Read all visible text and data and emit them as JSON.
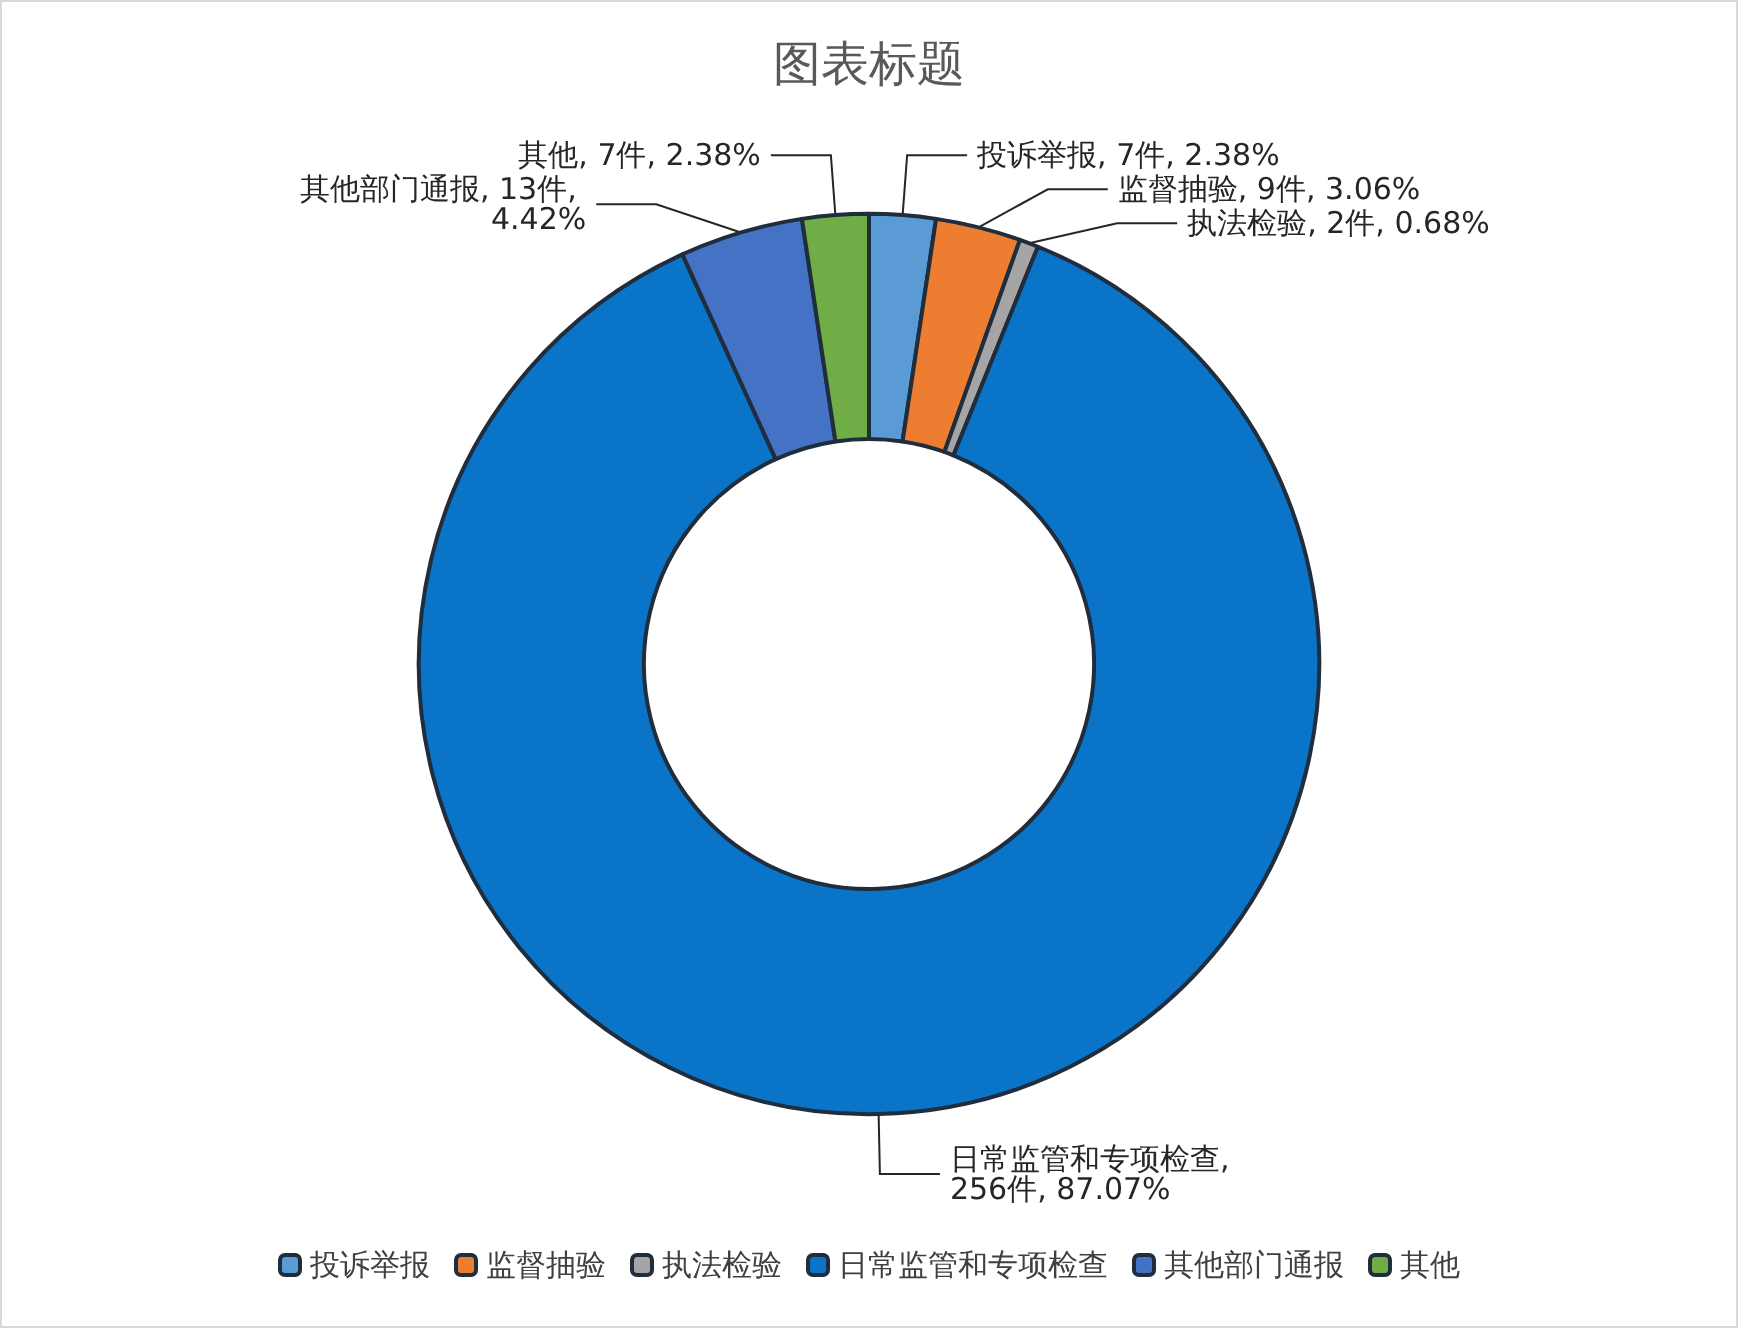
{
  "chart_data": {
    "type": "donut",
    "title": "图表标题",
    "categories": [
      "投诉举报",
      "监督抽验",
      "执法检验",
      "日常监管和专项检查",
      "其他部门通报",
      "其他"
    ],
    "values": [
      7,
      9,
      2,
      256,
      13,
      7
    ],
    "value_labels": [
      "投诉举报, 7件, 2.38%",
      "监督抽验, 9件, 3.06%",
      "执法检验, 2件, 0.68%",
      "日常监管和专项检查, 256件, 87.07%",
      "其他部门通报, 13件, 4.42%",
      "其他, 7件, 2.38%"
    ],
    "colors": [
      "#5b9bd5",
      "#ed7d31",
      "#a5a5a5",
      "#0a74c9",
      "#4472c4",
      "#70ad47"
    ],
    "legend": "bottom"
  }
}
